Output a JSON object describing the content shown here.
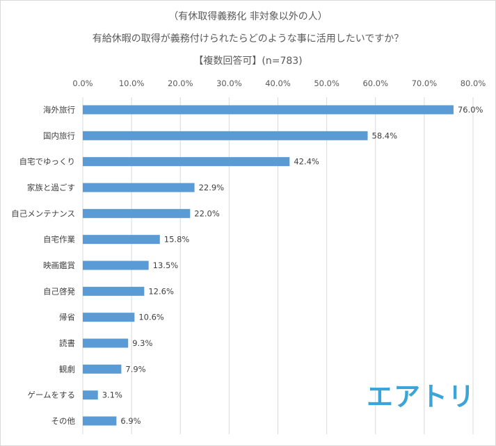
{
  "chart_data": {
    "type": "bar",
    "orientation": "horizontal",
    "title": [
      "（有休取得義務化 非対象以外の人）",
      "有給休暇の取得が義務付けられたらどのような事に活用したいですか？",
      "【複数回答可】(n=783)"
    ],
    "categories": [
      "海外旅行",
      "国内旅行",
      "自宅でゆっくり",
      "家族と過ごす",
      "自己メンテナンス",
      "自宅作業",
      "映画鑑賞",
      "自己啓発",
      "帰省",
      "読書",
      "観劇",
      "ゲームをする",
      "その他"
    ],
    "values": [
      76.0,
      58.4,
      42.4,
      22.9,
      22.0,
      15.8,
      13.5,
      12.6,
      10.6,
      9.3,
      7.9,
      3.1,
      6.9
    ],
    "value_labels": [
      "76.0%",
      "58.4%",
      "42.4%",
      "22.9%",
      "22.0%",
      "15.8%",
      "13.5%",
      "12.6%",
      "10.6%",
      "9.3%",
      "7.9%",
      "3.1%",
      "6.9%"
    ],
    "x_ticks": [
      "0.0%",
      "10.0%",
      "20.0%",
      "30.0%",
      "40.0%",
      "50.0%",
      "60.0%",
      "70.0%",
      "80.0%"
    ],
    "xlim": [
      0,
      80
    ],
    "axis_position": "top",
    "grid": true,
    "bar_color": "#5b9bd5"
  },
  "logo": {
    "text": "エアトリ",
    "color": "#3ba4d8"
  }
}
